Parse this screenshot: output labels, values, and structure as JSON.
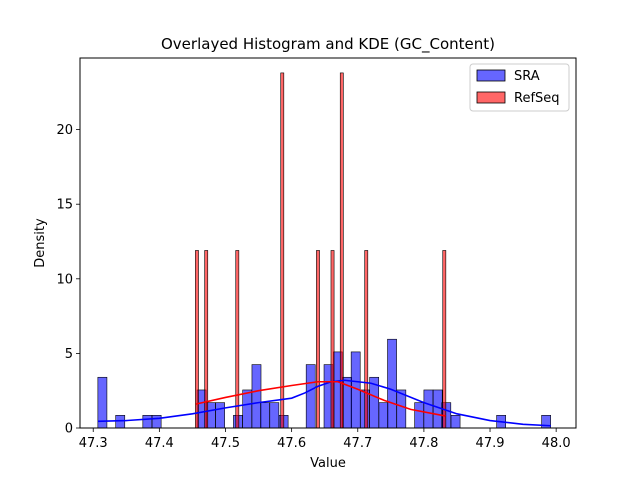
{
  "chart_data": {
    "type": "bar",
    "title": "Overlayed Histogram and KDE (GC_Content)",
    "xlabel": "Value",
    "ylabel": "Density",
    "xlim": [
      47.28,
      48.03
    ],
    "ylim": [
      0,
      24.8
    ],
    "xticks": [
      47.3,
      47.4,
      47.5,
      47.6,
      47.7,
      47.8,
      47.9,
      48.0
    ],
    "xtick_labels": [
      "47.3",
      "47.4",
      "47.5",
      "47.6",
      "47.7",
      "47.8",
      "47.9",
      "48.0"
    ],
    "yticks": [
      0,
      5,
      10,
      15,
      20
    ],
    "ytick_labels": [
      "0",
      "5",
      "10",
      "15",
      "20"
    ],
    "legend_position": "top-right",
    "series": [
      {
        "name": "SRA",
        "color": "#0000ff",
        "bin_width": 0.0137,
        "bars": [
          {
            "x0": 47.307,
            "height": 3.4
          },
          {
            "x0": 47.334,
            "height": 0.85
          },
          {
            "x0": 47.375,
            "height": 0.85
          },
          {
            "x0": 47.389,
            "height": 0.85
          },
          {
            "x0": 47.457,
            "height": 2.55
          },
          {
            "x0": 47.471,
            "height": 1.7
          },
          {
            "x0": 47.485,
            "height": 1.7
          },
          {
            "x0": 47.512,
            "height": 0.85
          },
          {
            "x0": 47.526,
            "height": 2.55
          },
          {
            "x0": 47.54,
            "height": 4.25
          },
          {
            "x0": 47.553,
            "height": 1.7
          },
          {
            "x0": 47.567,
            "height": 1.7
          },
          {
            "x0": 47.581,
            "height": 0.85
          },
          {
            "x0": 47.622,
            "height": 4.25
          },
          {
            "x0": 47.649,
            "height": 4.25
          },
          {
            "x0": 47.663,
            "height": 5.1
          },
          {
            "x0": 47.677,
            "height": 3.4
          },
          {
            "x0": 47.69,
            "height": 5.1
          },
          {
            "x0": 47.704,
            "height": 2.55
          },
          {
            "x0": 47.718,
            "height": 3.4
          },
          {
            "x0": 47.732,
            "height": 1.7
          },
          {
            "x0": 47.745,
            "height": 5.95
          },
          {
            "x0": 47.759,
            "height": 2.55
          },
          {
            "x0": 47.786,
            "height": 1.7
          },
          {
            "x0": 47.8,
            "height": 2.55
          },
          {
            "x0": 47.814,
            "height": 2.55
          },
          {
            "x0": 47.827,
            "height": 1.7
          },
          {
            "x0": 47.841,
            "height": 0.85
          },
          {
            "x0": 47.91,
            "height": 0.85
          },
          {
            "x0": 47.978,
            "height": 0.85
          }
        ],
        "kde": {
          "x": [
            47.307,
            47.35,
            47.4,
            47.45,
            47.5,
            47.55,
            47.6,
            47.62,
            47.64,
            47.66,
            47.68,
            47.7,
            47.72,
            47.75,
            47.8,
            47.85,
            47.9,
            47.95,
            47.992
          ],
          "y": [
            0.45,
            0.5,
            0.65,
            0.95,
            1.35,
            1.7,
            2.0,
            2.35,
            2.8,
            3.1,
            3.2,
            3.1,
            3.0,
            2.6,
            1.7,
            0.95,
            0.5,
            0.25,
            0.15
          ]
        }
      },
      {
        "name": "RefSeq",
        "color": "#ff0000",
        "bin_width": 0.0047,
        "bars": [
          {
            "x0": 47.4545,
            "height": 11.9
          },
          {
            "x0": 47.4685,
            "height": 11.9
          },
          {
            "x0": 47.5155,
            "height": 11.9
          },
          {
            "x0": 47.5155,
            "height": 0.0
          },
          {
            "x0": 47.5835,
            "height": 23.8
          },
          {
            "x0": 47.6375,
            "height": 11.9
          },
          {
            "x0": 47.6595,
            "height": 11.9
          },
          {
            "x0": 47.6735,
            "height": 23.8
          },
          {
            "x0": 47.7105,
            "height": 11.9
          },
          {
            "x0": 47.8285,
            "height": 11.9
          }
        ],
        "kde": {
          "x": [
            47.455,
            47.5,
            47.55,
            47.6,
            47.64,
            47.67,
            47.7,
            47.74,
            47.78,
            47.833
          ],
          "y": [
            1.6,
            2.05,
            2.5,
            2.85,
            3.1,
            3.1,
            2.6,
            1.85,
            1.25,
            0.8
          ]
        }
      }
    ]
  }
}
